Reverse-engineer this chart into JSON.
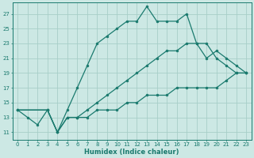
{
  "xlabel": "Humidex (Indice chaleur)",
  "bg_color": "#cce8e4",
  "grid_color": "#a8cec8",
  "line_color": "#1a7a6e",
  "xlim": [
    -0.5,
    23.5
  ],
  "ylim": [
    10.0,
    28.5
  ],
  "xticks": [
    0,
    1,
    2,
    3,
    4,
    5,
    6,
    7,
    8,
    9,
    10,
    11,
    12,
    13,
    14,
    15,
    16,
    17,
    18,
    19,
    20,
    21,
    22,
    23
  ],
  "yticks": [
    11,
    13,
    15,
    17,
    19,
    21,
    23,
    25,
    27
  ],
  "line1_x": [
    0,
    1,
    2,
    3,
    4,
    5,
    6,
    7,
    8,
    9,
    10,
    11,
    12,
    13,
    14,
    15,
    16,
    17,
    18,
    19,
    20,
    21,
    22,
    23
  ],
  "line1_y": [
    14,
    13,
    12,
    14,
    11,
    14,
    17,
    20,
    23,
    24,
    25,
    26,
    26,
    28,
    26,
    26,
    26,
    27,
    23,
    23,
    21,
    20,
    19,
    19
  ],
  "line2_x": [
    0,
    3,
    4,
    5,
    6,
    7,
    8,
    9,
    10,
    11,
    12,
    13,
    14,
    15,
    16,
    17,
    18,
    19,
    20,
    21,
    22,
    23
  ],
  "line2_y": [
    14,
    14,
    11,
    13,
    13,
    14,
    15,
    16,
    17,
    18,
    19,
    20,
    21,
    22,
    22,
    23,
    23,
    21,
    22,
    21,
    20,
    19
  ],
  "line3_x": [
    0,
    3,
    4,
    5,
    6,
    7,
    8,
    9,
    10,
    11,
    12,
    13,
    14,
    15,
    16,
    17,
    18,
    19,
    20,
    21,
    22,
    23
  ],
  "line3_y": [
    14,
    14,
    11,
    13,
    13,
    13,
    14,
    14,
    14,
    15,
    15,
    16,
    16,
    16,
    17,
    17,
    17,
    17,
    17,
    18,
    19,
    19
  ]
}
